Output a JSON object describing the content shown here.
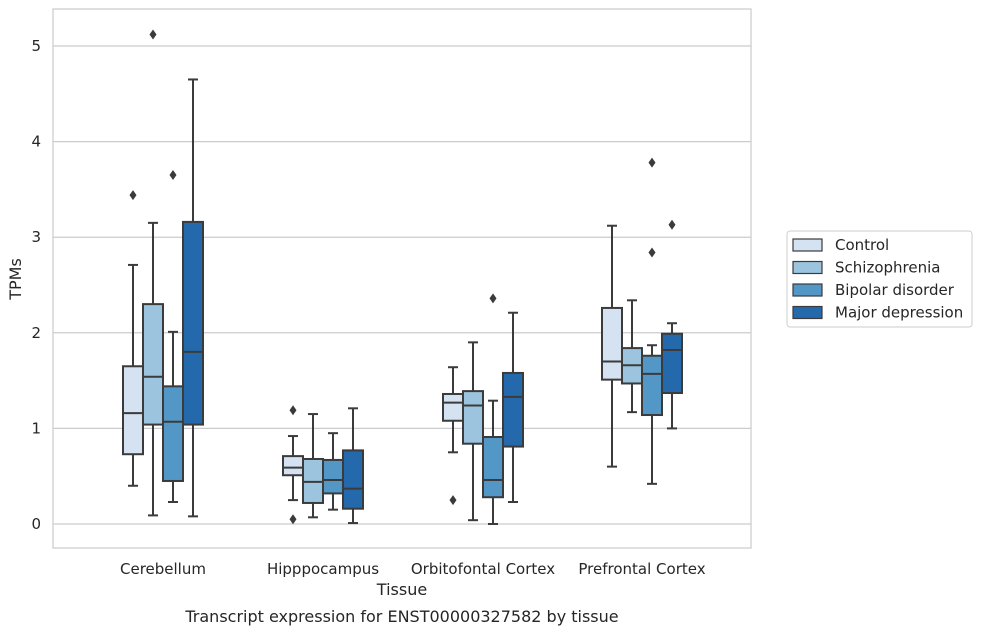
{
  "chart_data": {
    "type": "box",
    "title": "",
    "caption": "Transcript expression for ENST00000327582 by tissue",
    "xlabel": "Tissue",
    "ylabel": "TPMs",
    "ylim": [
      -0.25,
      5.4
    ],
    "yticks": [
      0,
      1,
      2,
      3,
      4,
      5
    ],
    "grid": true,
    "legend_position": "right",
    "categories": [
      "Cerebellum",
      "Hipppocampus",
      "Orbitofontal Cortex",
      "Prefrontal Cortex"
    ],
    "series": [
      {
        "name": "Control",
        "color": "#d4e2f2",
        "boxes": [
          {
            "whislo": 0.4,
            "q1": 0.73,
            "med": 1.16,
            "q3": 1.65,
            "whishi": 2.71,
            "fliers": [
              3.44
            ]
          },
          {
            "whislo": 0.25,
            "q1": 0.51,
            "med": 0.59,
            "q3": 0.71,
            "whishi": 0.92,
            "fliers": [
              1.19,
              0.05
            ]
          },
          {
            "whislo": 0.75,
            "q1": 1.08,
            "med": 1.27,
            "q3": 1.36,
            "whishi": 1.64,
            "fliers": [
              0.25
            ]
          },
          {
            "whislo": 0.6,
            "q1": 1.51,
            "med": 1.7,
            "q3": 2.26,
            "whishi": 3.12,
            "fliers": []
          }
        ]
      },
      {
        "name": "Schizophrenia",
        "color": "#9dc4de",
        "boxes": [
          {
            "whislo": 0.09,
            "q1": 1.04,
            "med": 1.54,
            "q3": 2.3,
            "whishi": 3.15,
            "fliers": [
              5.12
            ]
          },
          {
            "whislo": 0.07,
            "q1": 0.22,
            "med": 0.44,
            "q3": 0.68,
            "whishi": 1.15,
            "fliers": []
          },
          {
            "whislo": 0.04,
            "q1": 0.84,
            "med": 1.24,
            "q3": 1.39,
            "whishi": 1.9,
            "fliers": []
          },
          {
            "whislo": 1.17,
            "q1": 1.47,
            "med": 1.66,
            "q3": 1.84,
            "whishi": 2.34,
            "fliers": []
          }
        ]
      },
      {
        "name": "Bipolar disorder",
        "color": "#5297c6",
        "boxes": [
          {
            "whislo": 0.23,
            "q1": 0.45,
            "med": 1.07,
            "q3": 1.44,
            "whishi": 2.01,
            "fliers": [
              3.65
            ]
          },
          {
            "whislo": 0.15,
            "q1": 0.32,
            "med": 0.46,
            "q3": 0.67,
            "whishi": 0.95,
            "fliers": []
          },
          {
            "whislo": 0.0,
            "q1": 0.28,
            "med": 0.46,
            "q3": 0.91,
            "whishi": 1.29,
            "fliers": [
              2.36
            ]
          },
          {
            "whislo": 0.42,
            "q1": 1.14,
            "med": 1.57,
            "q3": 1.76,
            "whishi": 1.87,
            "fliers": [
              3.78,
              2.84
            ]
          }
        ]
      },
      {
        "name": "Major depression",
        "color": "#2369ab",
        "boxes": [
          {
            "whislo": 0.08,
            "q1": 1.04,
            "med": 1.8,
            "q3": 3.16,
            "whishi": 4.65,
            "fliers": []
          },
          {
            "whislo": 0.01,
            "q1": 0.16,
            "med": 0.37,
            "q3": 0.77,
            "whishi": 1.21,
            "fliers": []
          },
          {
            "whislo": 0.23,
            "q1": 0.81,
            "med": 1.33,
            "q3": 1.58,
            "whishi": 2.21,
            "fliers": []
          },
          {
            "whislo": 1.0,
            "q1": 1.37,
            "med": 1.82,
            "q3": 1.99,
            "whishi": 2.1,
            "fliers": [
              3.13
            ]
          }
        ]
      }
    ]
  }
}
